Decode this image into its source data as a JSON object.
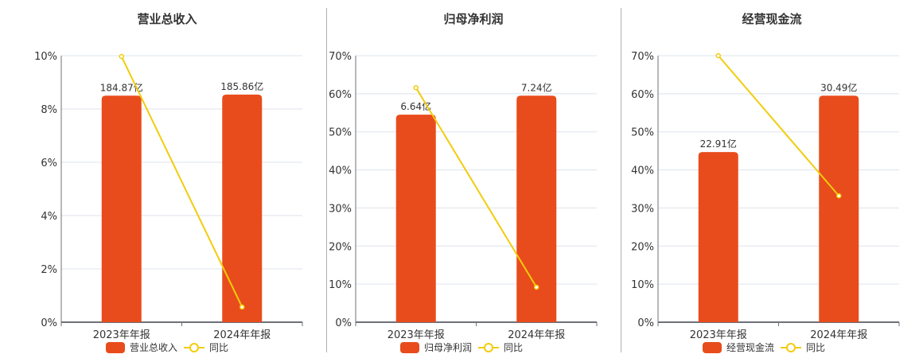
{
  "colors": {
    "bar": "#E84C1C",
    "line": "#F2CC0C",
    "grid": "#dde3ec",
    "axis": "#6e7079",
    "text": "#333333"
  },
  "legend": {
    "yoy_label": "同比"
  },
  "chart_data": [
    {
      "type": "bar+line",
      "title": "营业总收入",
      "categories": [
        "2023年年报",
        "2024年年报"
      ],
      "yaxis": {
        "ticks": [
          "0%",
          "2%",
          "4%",
          "6%",
          "8%",
          "10%"
        ],
        "ylim": [
          0,
          10
        ]
      },
      "series": [
        {
          "name": "营业总收入",
          "type": "bar",
          "values_pct_axis": [
            8.5,
            8.54
          ],
          "labels": [
            "184.87亿",
            "185.86亿"
          ]
        },
        {
          "name": "同比",
          "type": "line",
          "values": [
            9.97,
            0.57
          ]
        }
      ],
      "legend_position": "bottom"
    },
    {
      "type": "bar+line",
      "title": "归母净利润",
      "categories": [
        "2023年年报",
        "2024年年报"
      ],
      "yaxis": {
        "ticks": [
          "0%",
          "10%",
          "20%",
          "30%",
          "40%",
          "50%",
          "60%",
          "70%"
        ],
        "ylim": [
          0,
          70
        ]
      },
      "series": [
        {
          "name": "归母净利润",
          "type": "bar",
          "values_pct_axis": [
            54.5,
            59.5
          ],
          "labels": [
            "6.64亿",
            "7.24亿"
          ]
        },
        {
          "name": "同比",
          "type": "line",
          "values": [
            61.6,
            9.2
          ]
        }
      ],
      "legend_position": "bottom"
    },
    {
      "type": "bar+line",
      "title": "经营现金流",
      "categories": [
        "2023年年报",
        "2024年年报"
      ],
      "yaxis": {
        "ticks": [
          "0%",
          "10%",
          "20%",
          "30%",
          "40%",
          "50%",
          "60%",
          "70%"
        ],
        "ylim": [
          0,
          70
        ]
      },
      "series": [
        {
          "name": "经营现金流",
          "type": "bar",
          "values_pct_axis": [
            44.7,
            59.5
          ],
          "labels": [
            "22.91亿",
            "30.49亿"
          ]
        },
        {
          "name": "同比",
          "type": "line",
          "values": [
            70.0,
            33.2
          ]
        }
      ],
      "legend_position": "bottom"
    }
  ]
}
